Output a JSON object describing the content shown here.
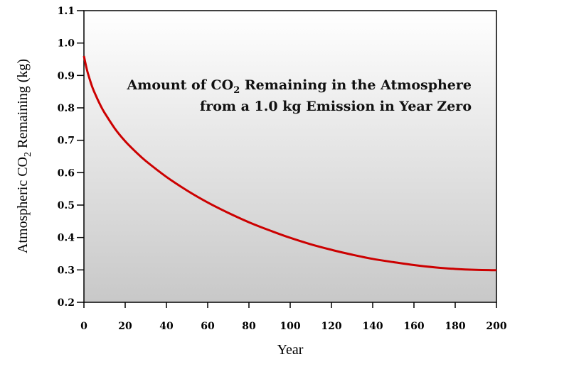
{
  "chart_data": {
    "type": "line",
    "title_line1_prefix": "Amount of CO",
    "title_subscript": "2",
    "title_line1_suffix": " Remaining in the Atmosphere",
    "title_line2": "from a 1.0 kg Emission in Year Zero",
    "xlabel": "Year",
    "ylabel_prefix": "Atmospheric CO",
    "ylabel_subscript": "2",
    "ylabel_suffix": " Remaining (kg)",
    "xlim": [
      0,
      200
    ],
    "ylim": [
      0.2,
      1.1
    ],
    "xticks": [
      0,
      20,
      40,
      60,
      80,
      100,
      120,
      140,
      160,
      180,
      200
    ],
    "yticks": [
      "0.2",
      "0.3",
      "0.4",
      "0.5",
      "0.6",
      "0.7",
      "0.8",
      "0.9",
      "1.0",
      "1.1"
    ],
    "grid": false,
    "series": [
      {
        "color": "#cc0000",
        "x": [
          0,
          1,
          2,
          4,
          6,
          8,
          10,
          15,
          20,
          25,
          30,
          40,
          50,
          60,
          70,
          80,
          90,
          100,
          110,
          120,
          130,
          140,
          150,
          160,
          170,
          180,
          190,
          200
        ],
        "y": [
          0.96,
          0.93,
          0.905,
          0.865,
          0.835,
          0.808,
          0.785,
          0.736,
          0.697,
          0.665,
          0.636,
          0.587,
          0.545,
          0.508,
          0.476,
          0.447,
          0.422,
          0.399,
          0.379,
          0.362,
          0.347,
          0.334,
          0.324,
          0.315,
          0.308,
          0.303,
          0.3,
          0.299
        ]
      }
    ]
  }
}
